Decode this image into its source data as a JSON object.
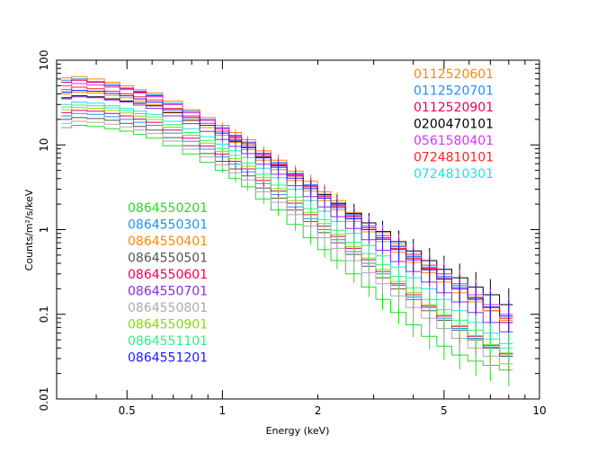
{
  "chart_data": {
    "type": "line",
    "xlabel": "Energy (keV)",
    "ylabel": "Counts/m²/s/keV",
    "x_scale": "log",
    "y_scale": "log",
    "xlim": [
      0.3,
      10
    ],
    "ylim": [
      0.01,
      100
    ],
    "x_ticks": [
      0.5,
      1,
      2,
      5,
      10
    ],
    "x_tick_labels": [
      "0.5",
      "1",
      "2",
      "5",
      "10"
    ],
    "y_ticks": [
      0.01,
      0.1,
      1,
      10,
      100
    ],
    "y_tick_labels": [
      "0.01",
      "0.1",
      "1",
      "10",
      "100"
    ],
    "grid": false,
    "legend_groups": [
      {
        "placement": "top-right",
        "entries": [
          0,
          1,
          2,
          3,
          4,
          5,
          6
        ]
      },
      {
        "placement": "middle-left",
        "entries": [
          7,
          8,
          9,
          10,
          11,
          12,
          13,
          14,
          15,
          16
        ]
      }
    ],
    "x": [
      0.32,
      0.35,
      0.4,
      0.45,
      0.5,
      0.55,
      0.6,
      0.7,
      0.8,
      0.9,
      1.0,
      1.1,
      1.2,
      1.35,
      1.5,
      1.7,
      1.9,
      2.1,
      2.3,
      2.6,
      2.9,
      3.2,
      3.6,
      4.0,
      4.5,
      5.0,
      5.6,
      6.3,
      7.0,
      8.0
    ],
    "series": [
      {
        "name": "0112520601",
        "color": "#ff8800",
        "values": [
          62,
          64,
          60,
          55,
          50,
          45,
          41,
          33,
          26,
          21,
          17,
          14,
          11.5,
          8.5,
          6.6,
          4.9,
          3.7,
          2.8,
          2.2,
          1.6,
          1.2,
          0.92,
          0.68,
          0.52,
          0.38,
          0.3,
          0.22,
          0.16,
          0.12,
          0.09
        ]
      },
      {
        "name": "0112520701",
        "color": "#1e90ff",
        "values": [
          58,
          60,
          56,
          52,
          47,
          43,
          39,
          31,
          25,
          20,
          16,
          13,
          10.8,
          8,
          6.2,
          4.6,
          3.4,
          2.6,
          2,
          1.5,
          1.1,
          0.85,
          0.63,
          0.48,
          0.36,
          0.28,
          0.21,
          0.15,
          0.11,
          0.08
        ]
      },
      {
        "name": "0112520901",
        "color": "#e8005a",
        "values": [
          55,
          58,
          55,
          50,
          46,
          42,
          38,
          30,
          24,
          19.5,
          15.5,
          12.5,
          10.5,
          7.8,
          6,
          4.5,
          3.3,
          2.5,
          1.95,
          1.45,
          1.05,
          0.8,
          0.6,
          0.46,
          0.34,
          0.26,
          0.2,
          0.14,
          0.11,
          0.08
        ]
      },
      {
        "name": "0200470101",
        "color": "#000000",
        "values": [
          36,
          38,
          37,
          35,
          33,
          31,
          29,
          24,
          19.5,
          16,
          13,
          11,
          9.3,
          7.2,
          5.7,
          4.3,
          3.3,
          2.6,
          2.05,
          1.55,
          1.2,
          0.95,
          0.72,
          0.56,
          0.43,
          0.34,
          0.27,
          0.21,
          0.17,
          0.13
        ]
      },
      {
        "name": "0561580401",
        "color": "#d633ff",
        "values": [
          50,
          53,
          51,
          48,
          45,
          41,
          37,
          30,
          24,
          19.5,
          15.5,
          12.7,
          10.5,
          7.8,
          6,
          4.4,
          3.3,
          2.5,
          1.95,
          1.45,
          1.1,
          0.85,
          0.64,
          0.5,
          0.38,
          0.3,
          0.23,
          0.17,
          0.13,
          0.1
        ]
      },
      {
        "name": "0724810101",
        "color": "#ff2020",
        "values": [
          45,
          48,
          46,
          43,
          40,
          37,
          34,
          27,
          22,
          18,
          14.5,
          12,
          10,
          7.5,
          5.8,
          4.3,
          3.2,
          2.45,
          1.9,
          1.4,
          1.05,
          0.8,
          0.6,
          0.46,
          0.35,
          0.27,
          0.2,
          0.15,
          0.12,
          0.09
        ]
      },
      {
        "name": "0724810301",
        "color": "#22e0e0",
        "values": [
          30,
          32,
          31,
          29,
          27,
          25,
          23,
          19,
          15.5,
          12.5,
          10.2,
          8.5,
          7.1,
          5.3,
          4.1,
          3,
          2.2,
          1.65,
          1.25,
          0.9,
          0.65,
          0.49,
          0.36,
          0.27,
          0.2,
          0.15,
          0.11,
          0.08,
          0.06,
          0.045
        ]
      },
      {
        "name": "0864550201",
        "color": "#22dd22",
        "values": [
          16,
          17,
          16.5,
          15.5,
          14.5,
          13.3,
          12,
          9.8,
          7.8,
          6.2,
          5,
          4,
          3.2,
          2.3,
          1.7,
          1.15,
          0.8,
          0.58,
          0.43,
          0.3,
          0.21,
          0.15,
          0.105,
          0.075,
          0.055,
          0.042,
          0.033,
          0.028,
          0.025,
          0.022
        ]
      },
      {
        "name": "0864550301",
        "color": "#1e90ff",
        "values": [
          22,
          23.5,
          23,
          21.5,
          20,
          18.5,
          17,
          13.8,
          11,
          8.9,
          7.2,
          5.9,
          4.8,
          3.5,
          2.6,
          1.85,
          1.35,
          1,
          0.76,
          0.55,
          0.4,
          0.3,
          0.22,
          0.16,
          0.12,
          0.09,
          0.068,
          0.052,
          0.041,
          0.032
        ]
      },
      {
        "name": "0864550401",
        "color": "#ff8800",
        "values": [
          40,
          42,
          41,
          38.5,
          36,
          33,
          30,
          24.5,
          19.8,
          16,
          13,
          10.7,
          8.8,
          6.6,
          5.1,
          3.8,
          2.85,
          2.2,
          1.7,
          1.25,
          0.94,
          0.72,
          0.54,
          0.41,
          0.31,
          0.24,
          0.18,
          0.14,
          0.11,
          0.085
        ]
      },
      {
        "name": "0864550501",
        "color": "#555555",
        "values": [
          20,
          21,
          20.5,
          19.5,
          18,
          16.5,
          15,
          12.2,
          9.8,
          7.9,
          6.4,
          5.2,
          4.3,
          3.1,
          2.35,
          1.7,
          1.25,
          0.92,
          0.7,
          0.51,
          0.37,
          0.27,
          0.2,
          0.15,
          0.11,
          0.085,
          0.065,
          0.05,
          0.04,
          0.032
        ]
      },
      {
        "name": "0864550601",
        "color": "#e8005a",
        "values": [
          24,
          25.5,
          25,
          23.5,
          22,
          20.2,
          18.5,
          15,
          12,
          9.7,
          7.8,
          6.4,
          5.2,
          3.8,
          2.85,
          2.05,
          1.5,
          1.1,
          0.83,
          0.6,
          0.44,
          0.32,
          0.23,
          0.17,
          0.125,
          0.095,
          0.072,
          0.055,
          0.043,
          0.034
        ]
      },
      {
        "name": "0864550701",
        "color": "#8a2be2",
        "values": [
          35,
          37,
          36,
          34,
          32,
          29.5,
          27,
          22,
          17.8,
          14.4,
          11.6,
          9.6,
          7.9,
          5.9,
          4.5,
          3.3,
          2.45,
          1.85,
          1.42,
          1.03,
          0.76,
          0.57,
          0.42,
          0.32,
          0.24,
          0.18,
          0.14,
          0.105,
          0.08,
          0.062
        ]
      },
      {
        "name": "0864550801",
        "color": "#aaaaaa",
        "values": [
          18,
          19,
          18.5,
          17.5,
          16.3,
          15,
          13.7,
          11.1,
          8.9,
          7.2,
          5.8,
          4.7,
          3.85,
          2.8,
          2.1,
          1.5,
          1.1,
          0.8,
          0.6,
          0.43,
          0.31,
          0.23,
          0.165,
          0.12,
          0.09,
          0.068,
          0.052,
          0.04,
          0.032,
          0.026
        ]
      },
      {
        "name": "0864550901",
        "color": "#88dd00",
        "values": [
          26,
          27.5,
          27,
          25.5,
          23.8,
          21.9,
          20,
          16.2,
          13,
          10.5,
          8.4,
          6.9,
          5.6,
          4.1,
          3.05,
          2.2,
          1.6,
          1.18,
          0.88,
          0.63,
          0.46,
          0.34,
          0.245,
          0.18,
          0.13,
          0.098,
          0.074,
          0.056,
          0.044,
          0.035
        ]
      },
      {
        "name": "0864551101",
        "color": "#33ee88",
        "values": [
          28,
          29.5,
          29,
          27.3,
          25.5,
          23.4,
          21.4,
          17.4,
          14,
          11.3,
          9.1,
          7.5,
          6.1,
          4.5,
          3.35,
          2.42,
          1.77,
          1.31,
          0.98,
          0.71,
          0.52,
          0.385,
          0.28,
          0.205,
          0.15,
          0.113,
          0.085,
          0.065,
          0.051,
          0.04
        ]
      },
      {
        "name": "0864551201",
        "color": "#1a1aff",
        "values": [
          42,
          44,
          43,
          40.5,
          38,
          35,
          32,
          26,
          21,
          17,
          13.8,
          11.4,
          9.4,
          7.05,
          5.45,
          4.05,
          3.05,
          2.35,
          1.82,
          1.34,
          1.0,
          0.77,
          0.58,
          0.44,
          0.335,
          0.26,
          0.2,
          0.155,
          0.122,
          0.095
        ]
      }
    ]
  }
}
